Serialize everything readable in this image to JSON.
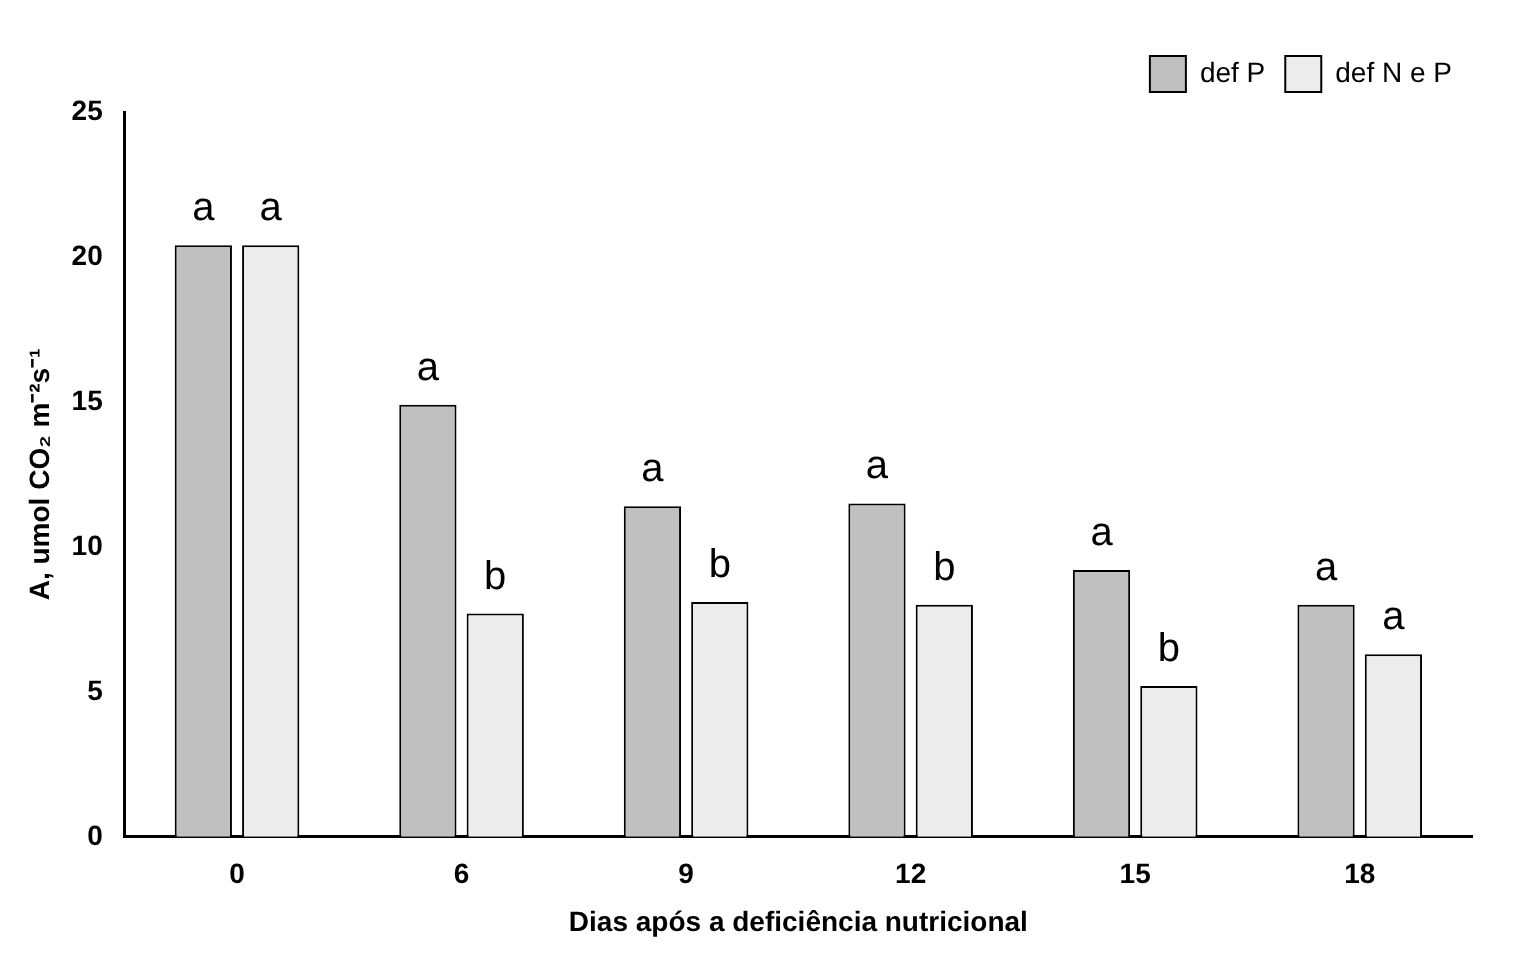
{
  "chart_data": {
    "type": "bar",
    "xlabel": "Dias após a deficiência nutricional",
    "ylabel": "A, umol CO₂ m⁻²s⁻¹",
    "categories": [
      "0",
      "6",
      "9",
      "12",
      "15",
      "18"
    ],
    "series": [
      {
        "name": "def P",
        "color": "#c0c0c0",
        "values": [
          20.4,
          14.9,
          11.4,
          11.5,
          9.2,
          8.0
        ],
        "value_labels": [
          "a",
          "a",
          "a",
          "a",
          "a",
          "a"
        ]
      },
      {
        "name": "def N e P",
        "color": "#ececec",
        "values": [
          20.4,
          7.7,
          8.1,
          8.0,
          5.2,
          6.3
        ],
        "value_labels": [
          "a",
          "b",
          "b",
          "b",
          "b",
          "a"
        ]
      }
    ],
    "ylim": [
      0,
      25
    ],
    "yticks": [
      0,
      5,
      10,
      15,
      20,
      25
    ],
    "grid": false,
    "legend": "top right"
  }
}
